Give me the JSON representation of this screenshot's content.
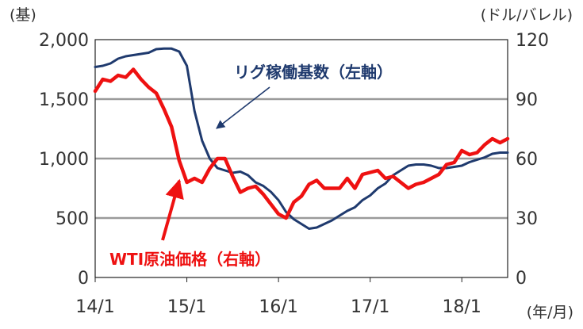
{
  "chart_data": {
    "type": "line",
    "x_ticks": [
      "14/1",
      "15/1",
      "16/1",
      "17/1",
      "18/1"
    ],
    "x_unit": "(年/月)",
    "left_axis": {
      "unit": "(基)",
      "ticks": [
        "0",
        "500",
        "1,000",
        "1,500",
        "2,000"
      ],
      "ylim": [
        0,
        2000
      ]
    },
    "right_axis": {
      "unit": "(ドル/バレル)",
      "ticks": [
        "0",
        "30",
        "60",
        "90",
        "120"
      ],
      "ylim": [
        0,
        120
      ]
    },
    "grid": "horizontal",
    "series": [
      {
        "name": "リグ稼働基数(左軸)",
        "axis": "left",
        "color": "#1f3a6e",
        "points": [
          [
            "2014-01",
            1770
          ],
          [
            "2014-02",
            1780
          ],
          [
            "2014-03",
            1800
          ],
          [
            "2014-04",
            1840
          ],
          [
            "2014-05",
            1860
          ],
          [
            "2014-06",
            1870
          ],
          [
            "2014-07",
            1880
          ],
          [
            "2014-08",
            1890
          ],
          [
            "2014-09",
            1920
          ],
          [
            "2014-10",
            1925
          ],
          [
            "2014-11",
            1925
          ],
          [
            "2014-12",
            1900
          ],
          [
            "2015-01",
            1780
          ],
          [
            "2015-02",
            1400
          ],
          [
            "2015-03",
            1150
          ],
          [
            "2015-04",
            1000
          ],
          [
            "2015-05",
            920
          ],
          [
            "2015-06",
            900
          ],
          [
            "2015-07",
            880
          ],
          [
            "2015-08",
            890
          ],
          [
            "2015-09",
            860
          ],
          [
            "2015-10",
            800
          ],
          [
            "2015-11",
            770
          ],
          [
            "2015-12",
            720
          ],
          [
            "2016-01",
            650
          ],
          [
            "2016-02",
            550
          ],
          [
            "2016-03",
            490
          ],
          [
            "2016-04",
            450
          ],
          [
            "2016-05",
            410
          ],
          [
            "2016-06",
            420
          ],
          [
            "2016-07",
            450
          ],
          [
            "2016-08",
            480
          ],
          [
            "2016-09",
            520
          ],
          [
            "2016-10",
            560
          ],
          [
            "2016-11",
            590
          ],
          [
            "2016-12",
            650
          ],
          [
            "2017-01",
            690
          ],
          [
            "2017-02",
            750
          ],
          [
            "2017-03",
            790
          ],
          [
            "2017-04",
            860
          ],
          [
            "2017-05",
            900
          ],
          [
            "2017-06",
            940
          ],
          [
            "2017-07",
            950
          ],
          [
            "2017-08",
            950
          ],
          [
            "2017-09",
            940
          ],
          [
            "2017-10",
            920
          ],
          [
            "2017-11",
            920
          ],
          [
            "2017-12",
            930
          ],
          [
            "2018-01",
            940
          ],
          [
            "2018-02",
            970
          ],
          [
            "2018-03",
            990
          ],
          [
            "2018-04",
            1010
          ],
          [
            "2018-05",
            1040
          ],
          [
            "2018-06",
            1050
          ],
          [
            "2018-07",
            1050
          ]
        ]
      },
      {
        "name": "WTI原油価格(右軸)",
        "axis": "right",
        "color": "#ee1111",
        "points": [
          [
            "2014-01",
            94
          ],
          [
            "2014-02",
            100
          ],
          [
            "2014-03",
            99
          ],
          [
            "2014-04",
            102
          ],
          [
            "2014-05",
            101
          ],
          [
            "2014-06",
            105
          ],
          [
            "2014-07",
            100
          ],
          [
            "2014-08",
            96
          ],
          [
            "2014-09",
            93
          ],
          [
            "2014-10",
            85
          ],
          [
            "2014-11",
            76
          ],
          [
            "2014-12",
            59
          ],
          [
            "2015-01",
            48
          ],
          [
            "2015-02",
            50
          ],
          [
            "2015-03",
            48
          ],
          [
            "2015-04",
            55
          ],
          [
            "2015-05",
            60
          ],
          [
            "2015-06",
            60
          ],
          [
            "2015-07",
            51
          ],
          [
            "2015-08",
            43
          ],
          [
            "2015-09",
            45
          ],
          [
            "2015-10",
            46
          ],
          [
            "2015-11",
            42
          ],
          [
            "2015-12",
            37
          ],
          [
            "2016-01",
            32
          ],
          [
            "2016-02",
            30
          ],
          [
            "2016-03",
            38
          ],
          [
            "2016-04",
            41
          ],
          [
            "2016-05",
            47
          ],
          [
            "2016-06",
            49
          ],
          [
            "2016-07",
            45
          ],
          [
            "2016-08",
            45
          ],
          [
            "2016-09",
            45
          ],
          [
            "2016-10",
            50
          ],
          [
            "2016-11",
            45
          ],
          [
            "2016-12",
            52
          ],
          [
            "2017-01",
            53
          ],
          [
            "2017-02",
            54
          ],
          [
            "2017-03",
            50
          ],
          [
            "2017-04",
            51
          ],
          [
            "2017-05",
            48
          ],
          [
            "2017-06",
            45
          ],
          [
            "2017-07",
            47
          ],
          [
            "2017-08",
            48
          ],
          [
            "2017-09",
            50
          ],
          [
            "2017-10",
            52
          ],
          [
            "2017-11",
            57
          ],
          [
            "2017-12",
            58
          ],
          [
            "2018-01",
            64
          ],
          [
            "2018-02",
            62
          ],
          [
            "2018-03",
            63
          ],
          [
            "2018-04",
            67
          ],
          [
            "2018-05",
            70
          ],
          [
            "2018-06",
            68
          ],
          [
            "2018-07",
            70
          ]
        ]
      }
    ],
    "annotations": [
      {
        "text": "リグ稼働基数（左軸）",
        "color": "#1f3a6e",
        "series": 0
      },
      {
        "text": "WTI原油価格（右軸）",
        "color": "#ee1111",
        "series": 1
      }
    ]
  }
}
